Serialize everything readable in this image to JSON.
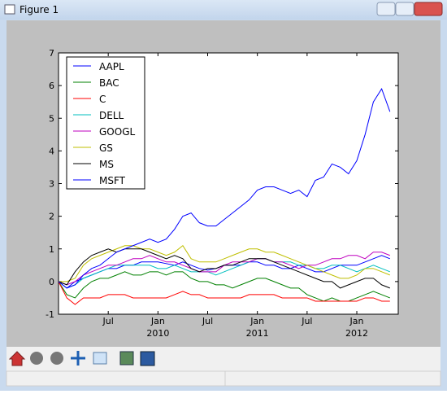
{
  "window": {
    "title": "Figure 1"
  },
  "chart_data": {
    "type": "line",
    "x": [
      "2009-01",
      "2009-02",
      "2009-03",
      "2009-04",
      "2009-05",
      "2009-06",
      "2009-07",
      "2009-08",
      "2009-09",
      "2009-10",
      "2009-11",
      "2009-12",
      "2010-01",
      "2010-02",
      "2010-03",
      "2010-04",
      "2010-05",
      "2010-06",
      "2010-07",
      "2010-08",
      "2010-09",
      "2010-10",
      "2010-11",
      "2010-12",
      "2011-01",
      "2011-02",
      "2011-03",
      "2011-04",
      "2011-05",
      "2011-06",
      "2011-07",
      "2011-08",
      "2011-09",
      "2011-10",
      "2011-11",
      "2011-12",
      "2012-01",
      "2012-02",
      "2012-03",
      "2012-04",
      "2012-05"
    ],
    "xlim": [
      "2009-01",
      "2012-06"
    ],
    "xticks": [
      {
        "value": "2009-07",
        "label": "Jul"
      },
      {
        "value": "2010-01",
        "label": "Jan",
        "year": "2010"
      },
      {
        "value": "2010-07",
        "label": "Jul"
      },
      {
        "value": "2011-01",
        "label": "Jan",
        "year": "2011"
      },
      {
        "value": "2011-07",
        "label": "Jul"
      },
      {
        "value": "2012-01",
        "label": "Jan",
        "year": "2012"
      }
    ],
    "ylim": [
      -1,
      7
    ],
    "yticks": [
      -1,
      0,
      1,
      2,
      3,
      4,
      5,
      6,
      7
    ],
    "legend": "upper-left",
    "series": [
      {
        "name": "AAPL",
        "color": "#0000ff",
        "values": [
          0,
          -0.2,
          0,
          0.1,
          0.2,
          0.3,
          0.4,
          0.4,
          0.5,
          0.5,
          0.6,
          0.6,
          0.6,
          0.55,
          0.5,
          0.6,
          0.5,
          0.4,
          0.35,
          0.4,
          0.5,
          0.5,
          0.5,
          0.6,
          0.6,
          0.5,
          0.5,
          0.4,
          0.4,
          0.5,
          0.4,
          0.3,
          0.3,
          0.4,
          0.5,
          0.5,
          0.5,
          0.6,
          0.7,
          0.8,
          0.7
        ]
      },
      {
        "name": "BAC",
        "color": "#008000",
        "values": [
          0,
          -0.4,
          -0.5,
          -0.2,
          0,
          0.1,
          0.1,
          0.2,
          0.3,
          0.2,
          0.2,
          0.3,
          0.3,
          0.2,
          0.3,
          0.3,
          0.1,
          0,
          0,
          -0.1,
          -0.1,
          -0.2,
          -0.1,
          0,
          0.1,
          0.1,
          0,
          -0.1,
          -0.2,
          -0.2,
          -0.4,
          -0.5,
          -0.6,
          -0.5,
          -0.6,
          -0.6,
          -0.5,
          -0.4,
          -0.3,
          -0.4,
          -0.5
        ]
      },
      {
        "name": "C",
        "color": "#ff0000",
        "values": [
          0,
          -0.5,
          -0.7,
          -0.5,
          -0.5,
          -0.5,
          -0.4,
          -0.4,
          -0.4,
          -0.5,
          -0.5,
          -0.5,
          -0.5,
          -0.5,
          -0.4,
          -0.3,
          -0.4,
          -0.4,
          -0.5,
          -0.5,
          -0.5,
          -0.5,
          -0.5,
          -0.4,
          -0.4,
          -0.4,
          -0.4,
          -0.5,
          -0.5,
          -0.5,
          -0.5,
          -0.6,
          -0.6,
          -0.6,
          -0.6,
          -0.6,
          -0.6,
          -0.5,
          -0.5,
          -0.6,
          -0.6
        ]
      },
      {
        "name": "DELL",
        "color": "#00bfbf",
        "values": [
          0,
          -0.2,
          -0.1,
          0.1,
          0.2,
          0.3,
          0.4,
          0.5,
          0.5,
          0.5,
          0.5,
          0.5,
          0.4,
          0.4,
          0.5,
          0.4,
          0.3,
          0.3,
          0.3,
          0.2,
          0.3,
          0.4,
          0.5,
          0.6,
          0.7,
          0.7,
          0.6,
          0.6,
          0.6,
          0.5,
          0.5,
          0.4,
          0.4,
          0.5,
          0.5,
          0.4,
          0.3,
          0.4,
          0.5,
          0.4,
          0.3
        ]
      },
      {
        "name": "GOOGL",
        "color": "#bf00bf",
        "values": [
          0,
          -0.1,
          0,
          0.2,
          0.3,
          0.4,
          0.5,
          0.5,
          0.6,
          0.7,
          0.7,
          0.8,
          0.7,
          0.6,
          0.6,
          0.5,
          0.4,
          0.3,
          0.3,
          0.3,
          0.5,
          0.6,
          0.6,
          0.6,
          0.7,
          0.7,
          0.6,
          0.6,
          0.5,
          0.4,
          0.5,
          0.5,
          0.6,
          0.7,
          0.7,
          0.8,
          0.8,
          0.7,
          0.9,
          0.9,
          0.8
        ]
      },
      {
        "name": "GS",
        "color": "#bfbf00",
        "values": [
          0,
          0,
          0.1,
          0.5,
          0.7,
          0.8,
          0.9,
          1,
          1.1,
          1.1,
          1,
          1,
          0.9,
          0.8,
          0.9,
          1.1,
          0.7,
          0.6,
          0.6,
          0.6,
          0.7,
          0.8,
          0.9,
          1,
          1,
          0.9,
          0.9,
          0.8,
          0.7,
          0.6,
          0.5,
          0.4,
          0.3,
          0.2,
          0.1,
          0.1,
          0.2,
          0.4,
          0.4,
          0.3,
          0.2
        ]
      },
      {
        "name": "MS",
        "color": "#000000",
        "values": [
          0,
          -0.1,
          0.3,
          0.6,
          0.8,
          0.9,
          1,
          0.9,
          1,
          1,
          1,
          0.9,
          0.8,
          0.7,
          0.8,
          0.7,
          0.4,
          0.3,
          0.4,
          0.4,
          0.5,
          0.5,
          0.6,
          0.7,
          0.7,
          0.7,
          0.6,
          0.5,
          0.4,
          0.3,
          0.2,
          0.1,
          0,
          0,
          -0.2,
          -0.1,
          0,
          0.1,
          0.1,
          -0.1,
          -0.2
        ]
      },
      {
        "name": "MSFT",
        "color": "#0000ff",
        "values": [
          0,
          -0.2,
          -0.1,
          0.2,
          0.4,
          0.5,
          0.7,
          0.9,
          1,
          1.1,
          1.2,
          1.3,
          1.2,
          1.3,
          1.6,
          2,
          2.1,
          1.8,
          1.7,
          1.7,
          1.9,
          2.1,
          2.3,
          2.5,
          2.8,
          2.9,
          2.9,
          2.8,
          2.7,
          2.8,
          2.6,
          3.1,
          3.2,
          3.6,
          3.5,
          3.3,
          3.7,
          4.5,
          5.5,
          5.9,
          5.2
        ]
      }
    ]
  }
}
